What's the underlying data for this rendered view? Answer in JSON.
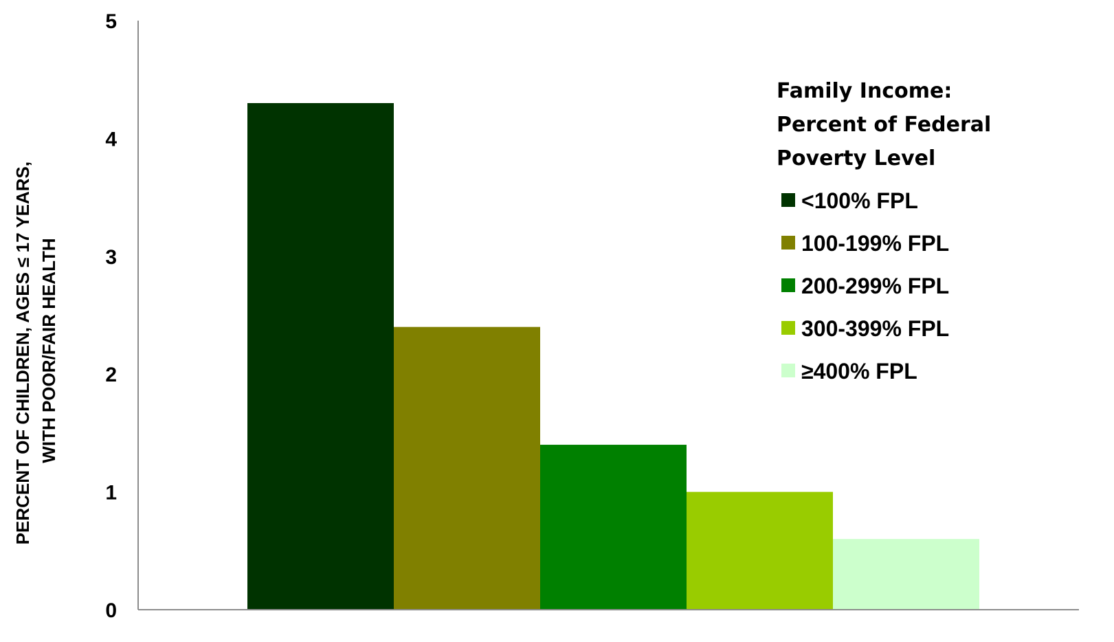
{
  "chart_data": {
    "type": "bar",
    "title": "",
    "xlabel": "",
    "ylabel": [
      "PERCENT OF CHILDREN, AGES ≤ 17 YEARS,",
      "WITH POOR/FAIR HEALTH"
    ],
    "ylim": [
      0,
      5
    ],
    "yticks": [
      "0",
      "1",
      "2",
      "3",
      "4",
      "5"
    ],
    "grid": false,
    "legend": {
      "placement": "top-right",
      "title": [
        "Family Income:",
        "Percent of Federal",
        "Poverty Level"
      ]
    },
    "series": [
      {
        "name": "<100% FPL",
        "value": 4.3,
        "color": "#003300"
      },
      {
        "name": "100-199%  FPL",
        "value": 2.4,
        "color": "#808000"
      },
      {
        "name": "200-299%  FPL",
        "value": 1.4,
        "color": "#008000"
      },
      {
        "name": "300-399%  FPL",
        "value": 1.0,
        "color": "#99CC00"
      },
      {
        "name": "≥400%  FPL",
        "value": 0.6,
        "color": "#CCFFCC"
      }
    ]
  }
}
